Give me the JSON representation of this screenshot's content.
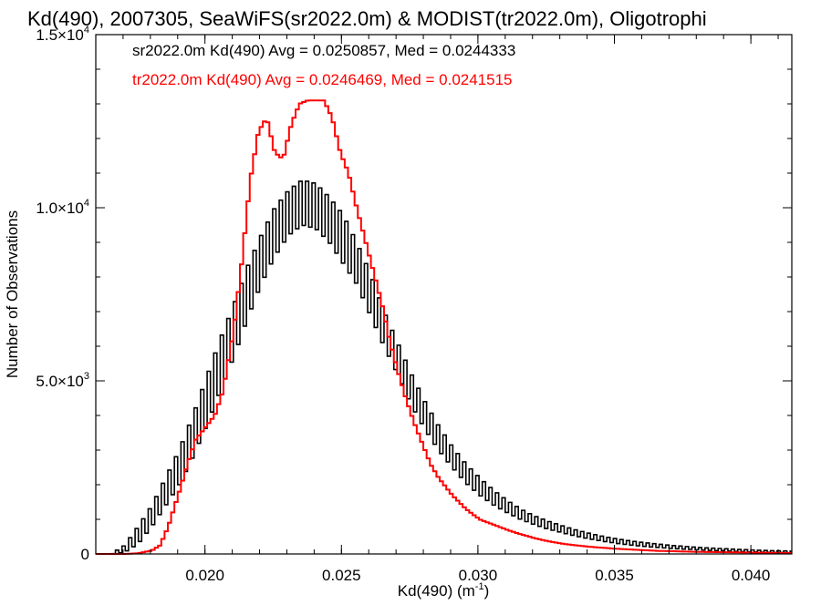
{
  "chart_data": {
    "type": "line",
    "title": "Kd(490), 2007305, SeaWiFS(sr2022.0m) & MODIST(tr2022.0m), Oligotrophi",
    "xlabel": "Kd(490) (m",
    "xlabel_sup": "-1",
    "xlabel_close": ")",
    "ylabel": "Number of Observations",
    "xlim": [
      0.016,
      0.0415
    ],
    "ylim": [
      0,
      15000
    ],
    "x_ticks": [
      {
        "value": 0.02,
        "label": "0.020"
      },
      {
        "value": 0.025,
        "label": "0.025"
      },
      {
        "value": 0.03,
        "label": "0.030"
      },
      {
        "value": 0.035,
        "label": "0.035"
      },
      {
        "value": 0.04,
        "label": "0.040"
      }
    ],
    "y_ticks": [
      {
        "value": 0,
        "label": "0",
        "sup": ""
      },
      {
        "value": 5000,
        "label": "5.0×10",
        "sup": "3"
      },
      {
        "value": 10000,
        "label": "1.0×10",
        "sup": "4"
      },
      {
        "value": 15000,
        "label": "1.5×10",
        "sup": "4"
      }
    ],
    "annotations": [
      {
        "text": "sr2022.0m Kd(490) Avg = 0.0250857, Med = 0.0244333",
        "color": "#000000"
      },
      {
        "text": "tr2022.0m Kd(490) Avg = 0.0246469, Med = 0.0241515",
        "color": "#ff0000"
      }
    ],
    "series": [
      {
        "color": "#000000",
        "style": "oscillating-step",
        "x": [
          0.0165,
          0.017,
          0.0175,
          0.018,
          0.0185,
          0.019,
          0.0195,
          0.02,
          0.0205,
          0.021,
          0.0215,
          0.022,
          0.0225,
          0.023,
          0.0235,
          0.024,
          0.0245,
          0.025,
          0.0255,
          0.026,
          0.0265,
          0.027,
          0.0275,
          0.028,
          0.0285,
          0.029,
          0.0295,
          0.03,
          0.0305,
          0.031,
          0.0315,
          0.032,
          0.0325,
          0.033,
          0.0335,
          0.034,
          0.0345,
          0.035,
          0.0355,
          0.036,
          0.0365,
          0.037,
          0.0375,
          0.038,
          0.0385,
          0.039,
          0.0395,
          0.04,
          0.0405,
          0.041,
          0.0415
        ],
        "low": [
          0,
          50,
          300,
          800,
          1400,
          2000,
          2800,
          3700,
          4700,
          5700,
          6800,
          7800,
          8600,
          9200,
          9500,
          9400,
          9000,
          8400,
          7800,
          6900,
          6000,
          5200,
          4300,
          3600,
          3000,
          2500,
          2050,
          1700,
          1420,
          1200,
          1000,
          850,
          720,
          620,
          520,
          440,
          370,
          310,
          260,
          220,
          190,
          160,
          140,
          120,
          100,
          85,
          70,
          60,
          50,
          40,
          30
        ],
        "high": [
          0,
          250,
          800,
          1400,
          2200,
          3000,
          4000,
          5100,
          6200,
          7200,
          8300,
          9200,
          10000,
          10500,
          10800,
          10700,
          10300,
          9800,
          9000,
          8100,
          7000,
          6100,
          5200,
          4400,
          3700,
          3100,
          2600,
          2200,
          1850,
          1550,
          1300,
          1100,
          950,
          820,
          700,
          600,
          510,
          440,
          380,
          330,
          290,
          250,
          220,
          190,
          170,
          150,
          130,
          115,
          100,
          90,
          80
        ]
      },
      {
        "color": "#ff0000",
        "style": "step",
        "x": [
          0.016,
          0.017,
          0.0175,
          0.018,
          0.0183,
          0.0186,
          0.019,
          0.0193,
          0.0196,
          0.02,
          0.0203,
          0.0206,
          0.021,
          0.0213,
          0.0216,
          0.0219,
          0.0222,
          0.0225,
          0.0228,
          0.0231,
          0.0234,
          0.0237,
          0.024,
          0.0243,
          0.0246,
          0.0249,
          0.0252,
          0.0255,
          0.0258,
          0.0261,
          0.0264,
          0.0267,
          0.027,
          0.0273,
          0.0276,
          0.0279,
          0.0282,
          0.0285,
          0.029,
          0.0295,
          0.03,
          0.0305,
          0.031,
          0.0315,
          0.032,
          0.0325,
          0.033,
          0.0335,
          0.034,
          0.0345,
          0.035,
          0.0355,
          0.036,
          0.0365,
          0.037,
          0.0375,
          0.038,
          0.0385,
          0.039,
          0.0395,
          0.04,
          0.0405,
          0.041,
          0.0415
        ],
        "y": [
          0,
          0,
          20,
          100,
          250,
          800,
          1800,
          2600,
          3300,
          3700,
          4000,
          4700,
          6500,
          8500,
          10800,
          12200,
          12600,
          11600,
          11400,
          12400,
          13000,
          13100,
          13100,
          13100,
          12600,
          11600,
          11000,
          10000,
          9100,
          8200,
          7300,
          6200,
          5300,
          4500,
          3800,
          3200,
          2600,
          2200,
          1700,
          1300,
          1000,
          850,
          700,
          570,
          460,
          370,
          300,
          250,
          210,
          180,
          150,
          130,
          110,
          90,
          80,
          70,
          60,
          55,
          50,
          45,
          40,
          35,
          30,
          25
        ]
      }
    ]
  }
}
